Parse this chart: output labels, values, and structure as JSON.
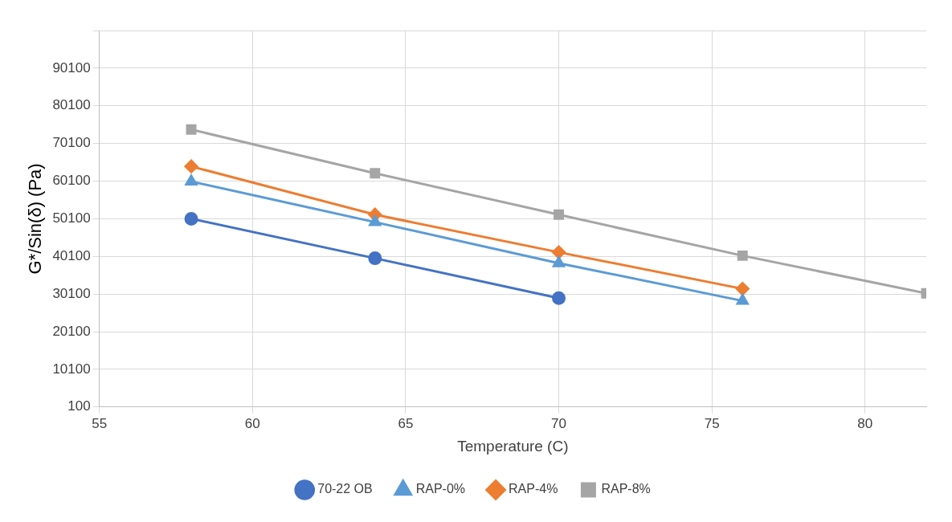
{
  "chart_data": {
    "type": "line",
    "xlabel": "Temperature (C)",
    "ylabel": "G*/Sin(δ) (Pa)",
    "xlim": [
      55,
      82
    ],
    "xticks": [
      55,
      60,
      65,
      70,
      75,
      80
    ],
    "ylim": [
      100,
      100100
    ],
    "yticks": [
      100,
      10100,
      20100,
      30100,
      40100,
      50100,
      60100,
      70100,
      80100,
      90100,
      {
        "value": 100100,
        "label": null
      }
    ],
    "grid": true,
    "legend": "bottom",
    "line_style": "solid",
    "series": [
      {
        "name": "70-22 OB",
        "color": "#4472c4",
        "marker": "circle",
        "x": [
          58,
          64,
          70
        ],
        "values": [
          50100,
          39600,
          29000
        ]
      },
      {
        "name": "RAP-0%",
        "color": "#5b9bd5",
        "marker": "triangle",
        "x": [
          58,
          64,
          70,
          76
        ],
        "values": [
          60000,
          49200,
          38300,
          28300
        ]
      },
      {
        "name": "RAP-4%",
        "color": "#ed7d31",
        "marker": "diamond",
        "x": [
          58,
          64,
          70,
          76
        ],
        "values": [
          64000,
          51200,
          41200,
          31500
        ]
      },
      {
        "name": "RAP-8%",
        "color": "#a5a5a5",
        "marker": "square",
        "x": [
          58,
          64,
          70,
          76,
          82
        ],
        "values": [
          73800,
          62200,
          51200,
          40300,
          30300
        ]
      }
    ]
  }
}
